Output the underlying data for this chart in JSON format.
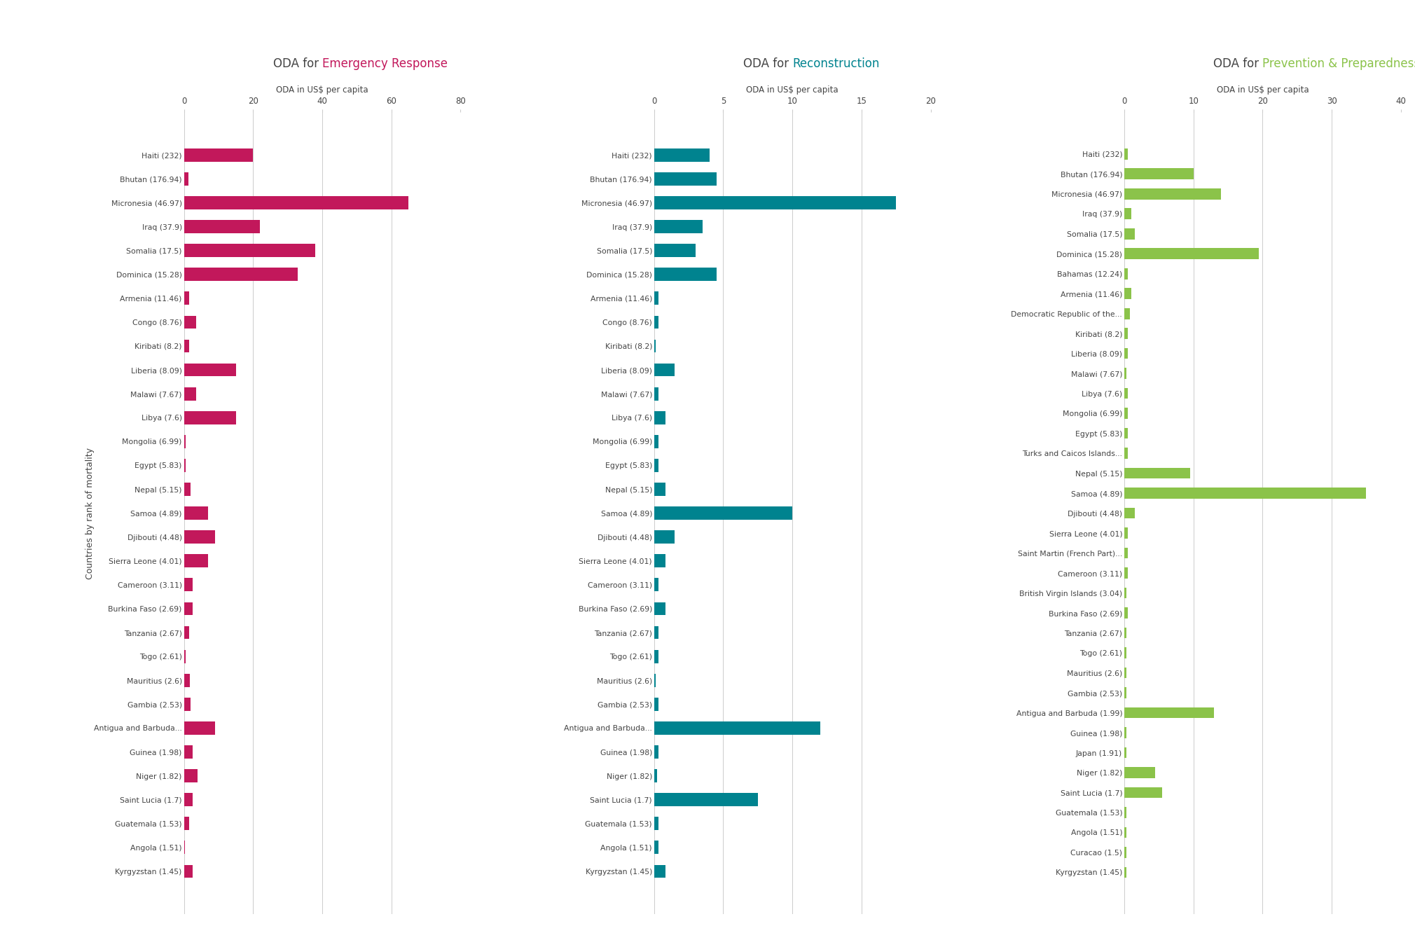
{
  "countries_em_rec": [
    "Haiti (232)",
    "Bhutan (176.94)",
    "Micronesia (46.97)",
    "Iraq (37.9)",
    "Somalia (17.5)",
    "Dominica (15.28)",
    "Armenia (11.46)",
    "Congo (8.76)",
    "Kiribati (8.2)",
    "Liberia (8.09)",
    "Malawi (7.67)",
    "Libya (7.6)",
    "Mongolia (6.99)",
    "Egypt (5.83)",
    "Nepal (5.15)",
    "Samoa (4.89)",
    "Djibouti (4.48)",
    "Sierra Leone (4.01)",
    "Cameroon (3.11)",
    "Burkina Faso (2.69)",
    "Tanzania (2.67)",
    "Togo (2.61)",
    "Mauritius (2.6)",
    "Gambia (2.53)",
    "Antigua and Barbuda...",
    "Guinea (1.98)",
    "Niger (1.82)",
    "Saint Lucia (1.7)",
    "Guatemala (1.53)",
    "Angola (1.51)",
    "Kyrgyzstan (1.45)"
  ],
  "countries_prev": [
    "Haiti (232)",
    "Bhutan (176.94)",
    "Micronesia (46.97)",
    "Iraq (37.9)",
    "Somalia (17.5)",
    "Dominica (15.28)",
    "Bahamas (12.24)",
    "Armenia (11.46)",
    "Democratic Republic of the...",
    "Kiribati (8.2)",
    "Liberia (8.09)",
    "Malawi (7.67)",
    "Libya (7.6)",
    "Mongolia (6.99)",
    "Egypt (5.83)",
    "Turks and Caicos Islands...",
    "Nepal (5.15)",
    "Samoa (4.89)",
    "Djibouti (4.48)",
    "Sierra Leone (4.01)",
    "Saint Martin (French Part)...",
    "Cameroon (3.11)",
    "British Virgin Islands (3.04)",
    "Burkina Faso (2.69)",
    "Tanzania (2.67)",
    "Togo (2.61)",
    "Mauritius (2.6)",
    "Gambia (2.53)",
    "Antigua and Barbuda (1.99)",
    "Guinea (1.98)",
    "Japan (1.91)",
    "Niger (1.82)",
    "Saint Lucia (1.7)",
    "Guatemala (1.53)",
    "Angola (1.51)",
    "Curacao (1.5)",
    "Kyrgyzstan (1.45)"
  ],
  "emergency": [
    20.0,
    1.2,
    65.0,
    22.0,
    38.0,
    33.0,
    1.5,
    3.5,
    1.5,
    15.0,
    3.5,
    15.0,
    0.5,
    0.5,
    2.0,
    7.0,
    9.0,
    7.0,
    2.5,
    2.5,
    1.5,
    0.5,
    1.8,
    2.0,
    9.0,
    2.5,
    4.0,
    2.5,
    1.5,
    0.3,
    2.5
  ],
  "reconstruction": [
    4.0,
    4.5,
    17.5,
    3.5,
    3.0,
    4.5,
    0.3,
    0.3,
    0.1,
    1.5,
    0.3,
    0.8,
    0.3,
    0.3,
    0.8,
    10.0,
    1.5,
    0.8,
    0.3,
    0.8,
    0.3,
    0.3,
    0.1,
    0.3,
    12.0,
    0.3,
    0.2,
    7.5,
    0.3,
    0.3,
    0.8
  ],
  "prevention": [
    0.5,
    10.0,
    14.0,
    1.0,
    1.5,
    19.5,
    0.5,
    1.0,
    0.8,
    0.5,
    0.5,
    0.3,
    0.5,
    0.5,
    0.5,
    0.5,
    9.5,
    35.0,
    1.5,
    0.5,
    0.5,
    0.5,
    0.3,
    0.5,
    0.3,
    0.3,
    0.3,
    0.3,
    13.0,
    0.3,
    0.3,
    4.5,
    5.5,
    0.3,
    0.3,
    0.3,
    0.3
  ],
  "emergency_color": "#C2185B",
  "reconstruction_color": "#00838F",
  "prevention_color": "#8BC34A",
  "xlabel": "ODA in US$ per capita",
  "ylabel": "Countries by rank of mortality",
  "xlim1": [
    0,
    80
  ],
  "xlim2": [
    0,
    20
  ],
  "xlim3": [
    0,
    40
  ],
  "xticks1": [
    0,
    20,
    40,
    60,
    80
  ],
  "xticks2": [
    0,
    5,
    10,
    15,
    20
  ],
  "xticks3": [
    0,
    10,
    20,
    30,
    40
  ],
  "text_color": "#444444",
  "grid_color": "#CCCCCC",
  "title_base_color": "#444444"
}
